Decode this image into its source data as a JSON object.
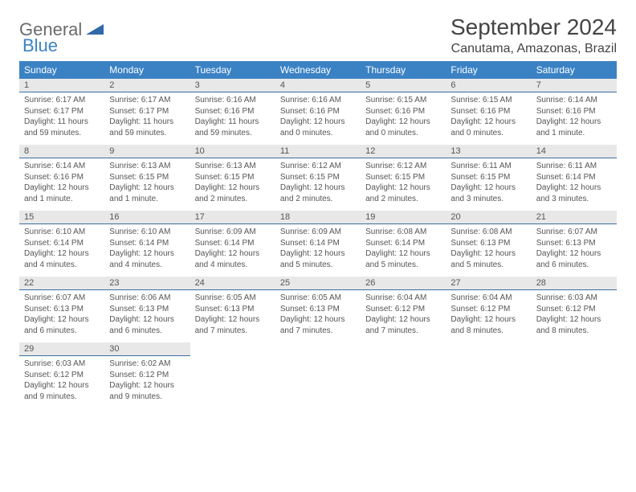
{
  "logo": {
    "word1": "General",
    "word2": "Blue"
  },
  "title": "September 2024",
  "location": "Canutama, Amazonas, Brazil",
  "colors": {
    "header_bg": "#3b82c4",
    "header_text": "#ffffff",
    "daynum_bg": "#e8e8e8",
    "text_body": "#555555",
    "logo_gray": "#6b6b6b",
    "logo_blue": "#3b82c4",
    "page_bg": "#ffffff",
    "daynum_border": "#3b6fa0"
  },
  "days_of_week": [
    "Sunday",
    "Monday",
    "Tuesday",
    "Wednesday",
    "Thursday",
    "Friday",
    "Saturday"
  ],
  "weeks": [
    [
      {
        "n": "1",
        "sunrise": "6:17 AM",
        "sunset": "6:17 PM",
        "daylight": "11 hours and 59 minutes."
      },
      {
        "n": "2",
        "sunrise": "6:17 AM",
        "sunset": "6:17 PM",
        "daylight": "11 hours and 59 minutes."
      },
      {
        "n": "3",
        "sunrise": "6:16 AM",
        "sunset": "6:16 PM",
        "daylight": "11 hours and 59 minutes."
      },
      {
        "n": "4",
        "sunrise": "6:16 AM",
        "sunset": "6:16 PM",
        "daylight": "12 hours and 0 minutes."
      },
      {
        "n": "5",
        "sunrise": "6:15 AM",
        "sunset": "6:16 PM",
        "daylight": "12 hours and 0 minutes."
      },
      {
        "n": "6",
        "sunrise": "6:15 AM",
        "sunset": "6:16 PM",
        "daylight": "12 hours and 0 minutes."
      },
      {
        "n": "7",
        "sunrise": "6:14 AM",
        "sunset": "6:16 PM",
        "daylight": "12 hours and 1 minute."
      }
    ],
    [
      {
        "n": "8",
        "sunrise": "6:14 AM",
        "sunset": "6:16 PM",
        "daylight": "12 hours and 1 minute."
      },
      {
        "n": "9",
        "sunrise": "6:13 AM",
        "sunset": "6:15 PM",
        "daylight": "12 hours and 1 minute."
      },
      {
        "n": "10",
        "sunrise": "6:13 AM",
        "sunset": "6:15 PM",
        "daylight": "12 hours and 2 minutes."
      },
      {
        "n": "11",
        "sunrise": "6:12 AM",
        "sunset": "6:15 PM",
        "daylight": "12 hours and 2 minutes."
      },
      {
        "n": "12",
        "sunrise": "6:12 AM",
        "sunset": "6:15 PM",
        "daylight": "12 hours and 2 minutes."
      },
      {
        "n": "13",
        "sunrise": "6:11 AM",
        "sunset": "6:15 PM",
        "daylight": "12 hours and 3 minutes."
      },
      {
        "n": "14",
        "sunrise": "6:11 AM",
        "sunset": "6:14 PM",
        "daylight": "12 hours and 3 minutes."
      }
    ],
    [
      {
        "n": "15",
        "sunrise": "6:10 AM",
        "sunset": "6:14 PM",
        "daylight": "12 hours and 4 minutes."
      },
      {
        "n": "16",
        "sunrise": "6:10 AM",
        "sunset": "6:14 PM",
        "daylight": "12 hours and 4 minutes."
      },
      {
        "n": "17",
        "sunrise": "6:09 AM",
        "sunset": "6:14 PM",
        "daylight": "12 hours and 4 minutes."
      },
      {
        "n": "18",
        "sunrise": "6:09 AM",
        "sunset": "6:14 PM",
        "daylight": "12 hours and 5 minutes."
      },
      {
        "n": "19",
        "sunrise": "6:08 AM",
        "sunset": "6:14 PM",
        "daylight": "12 hours and 5 minutes."
      },
      {
        "n": "20",
        "sunrise": "6:08 AM",
        "sunset": "6:13 PM",
        "daylight": "12 hours and 5 minutes."
      },
      {
        "n": "21",
        "sunrise": "6:07 AM",
        "sunset": "6:13 PM",
        "daylight": "12 hours and 6 minutes."
      }
    ],
    [
      {
        "n": "22",
        "sunrise": "6:07 AM",
        "sunset": "6:13 PM",
        "daylight": "12 hours and 6 minutes."
      },
      {
        "n": "23",
        "sunrise": "6:06 AM",
        "sunset": "6:13 PM",
        "daylight": "12 hours and 6 minutes."
      },
      {
        "n": "24",
        "sunrise": "6:05 AM",
        "sunset": "6:13 PM",
        "daylight": "12 hours and 7 minutes."
      },
      {
        "n": "25",
        "sunrise": "6:05 AM",
        "sunset": "6:13 PM",
        "daylight": "12 hours and 7 minutes."
      },
      {
        "n": "26",
        "sunrise": "6:04 AM",
        "sunset": "6:12 PM",
        "daylight": "12 hours and 7 minutes."
      },
      {
        "n": "27",
        "sunrise": "6:04 AM",
        "sunset": "6:12 PM",
        "daylight": "12 hours and 8 minutes."
      },
      {
        "n": "28",
        "sunrise": "6:03 AM",
        "sunset": "6:12 PM",
        "daylight": "12 hours and 8 minutes."
      }
    ],
    [
      {
        "n": "29",
        "sunrise": "6:03 AM",
        "sunset": "6:12 PM",
        "daylight": "12 hours and 9 minutes."
      },
      {
        "n": "30",
        "sunrise": "6:02 AM",
        "sunset": "6:12 PM",
        "daylight": "12 hours and 9 minutes."
      },
      null,
      null,
      null,
      null,
      null
    ]
  ],
  "labels": {
    "sunrise": "Sunrise:",
    "sunset": "Sunset:",
    "daylight": "Daylight:"
  }
}
